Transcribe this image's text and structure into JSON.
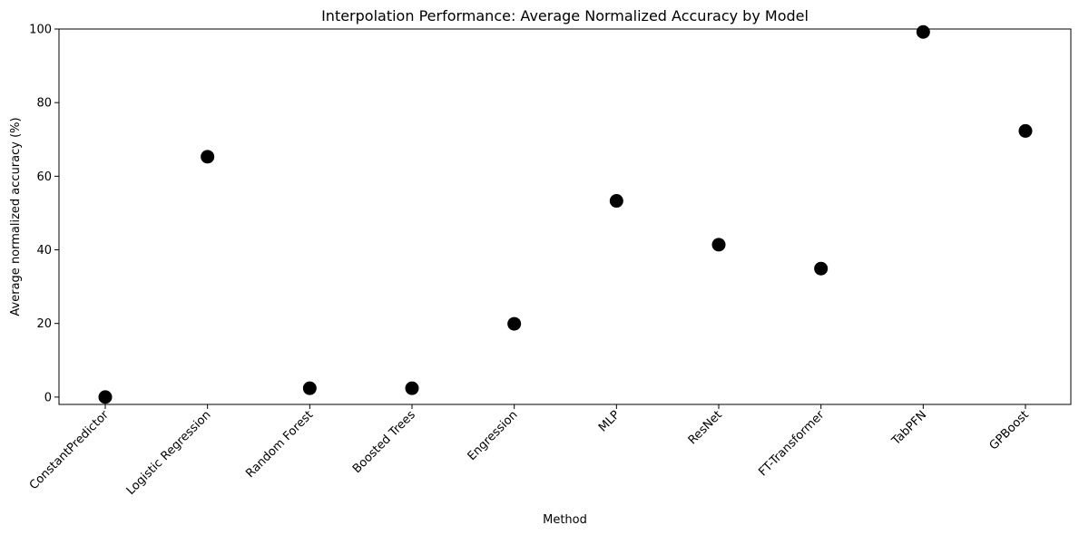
{
  "chart_data": {
    "type": "scatter",
    "title": "Interpolation Performance: Average Normalized Accuracy by Model",
    "xlabel": "Method",
    "ylabel": "Average normalized accuracy (%)",
    "categories": [
      "ConstantPredictor",
      "Logistic Regression",
      "Random Forest",
      "Boosted Trees",
      "Engression",
      "MLP",
      "ResNet",
      "FT-Transformer",
      "TabPFN",
      "GPBoost"
    ],
    "values": [
      0,
      65.3,
      2.4,
      2.4,
      19.9,
      53.3,
      41.4,
      34.9,
      99.2,
      72.3
    ],
    "ylim": [
      -2,
      100
    ],
    "yticks": [
      0,
      20,
      40,
      60,
      80,
      100
    ],
    "grid": false,
    "marker_color": "#000000"
  }
}
